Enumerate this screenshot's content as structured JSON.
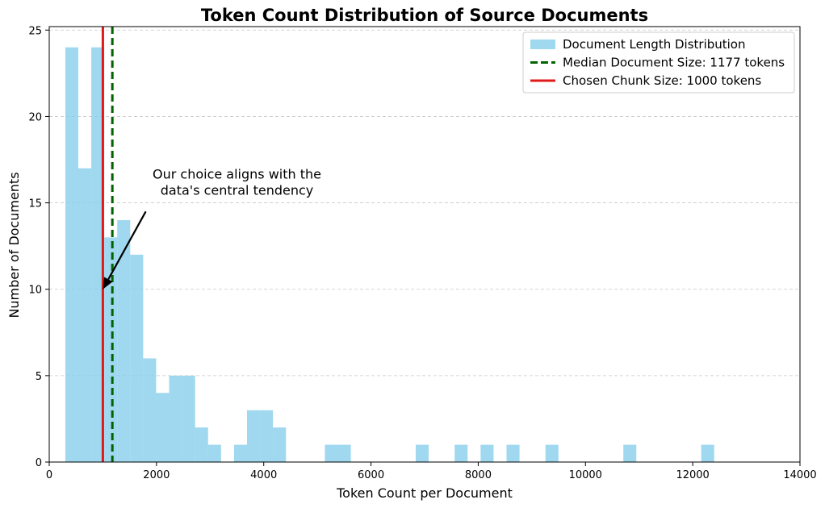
{
  "chart_data": {
    "type": "bar",
    "title": "Token Count Distribution of Source Documents",
    "xlabel": "Token Count per Document",
    "ylabel": "Number of Documents",
    "xlim": [
      0,
      14000
    ],
    "ylim": [
      0,
      25.2
    ],
    "xticks": [
      0,
      2000,
      4000,
      6000,
      8000,
      10000,
      12000,
      14000
    ],
    "yticks": [
      0,
      5,
      10,
      15,
      20,
      25
    ],
    "grid": "y-dashed",
    "bin_width": 242,
    "bins": [
      {
        "start": 300,
        "count": 24
      },
      {
        "start": 542,
        "count": 17
      },
      {
        "start": 784,
        "count": 24
      },
      {
        "start": 1026,
        "count": 13
      },
      {
        "start": 1268,
        "count": 14
      },
      {
        "start": 1510,
        "count": 12
      },
      {
        "start": 1752,
        "count": 6
      },
      {
        "start": 1994,
        "count": 4
      },
      {
        "start": 2236,
        "count": 5
      },
      {
        "start": 2478,
        "count": 5
      },
      {
        "start": 2720,
        "count": 2
      },
      {
        "start": 2962,
        "count": 1
      },
      {
        "start": 3446,
        "count": 1
      },
      {
        "start": 3688,
        "count": 3
      },
      {
        "start": 3930,
        "count": 3
      },
      {
        "start": 4172,
        "count": 2
      },
      {
        "start": 5140,
        "count": 1
      },
      {
        "start": 5382,
        "count": 1
      },
      {
        "start": 6834,
        "count": 1
      },
      {
        "start": 7560,
        "count": 1
      },
      {
        "start": 8044,
        "count": 1
      },
      {
        "start": 8528,
        "count": 1
      },
      {
        "start": 9254,
        "count": 1
      },
      {
        "start": 10706,
        "count": 1
      },
      {
        "start": 12158,
        "count": 1
      }
    ],
    "series": [
      {
        "name": "Document Length Distribution",
        "kind": "histogram",
        "color": "#87CEEB"
      },
      {
        "name": "Median Document Size: 1177 tokens",
        "kind": "vline",
        "x": 1177,
        "color": "#006400",
        "style": "dashed"
      },
      {
        "name": "Chosen Chunk Size: 1000 tokens",
        "kind": "vline",
        "x": 1000,
        "color": "#e01a1a",
        "style": "solid"
      }
    ],
    "legend_position": "top-right",
    "annotation": {
      "lines": [
        "Our choice aligns with the",
        "data's central tendency"
      ],
      "text_anchor": {
        "x": 3500,
        "y": 16.4
      },
      "arrow_from": {
        "x": 1800,
        "y": 14.5
      },
      "arrow_to": {
        "x": 1000,
        "y": 10
      }
    }
  }
}
